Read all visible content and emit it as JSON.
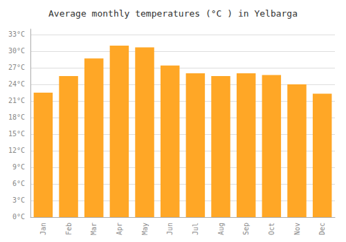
{
  "chart_data": {
    "type": "bar",
    "title": "Average monthly temperatures (°C ) in Yelbarga",
    "categories": [
      "Jan",
      "Feb",
      "Mar",
      "Apr",
      "May",
      "Jun",
      "Jul",
      "Aug",
      "Sep",
      "Oct",
      "Nov",
      "Dec"
    ],
    "values": [
      22.5,
      25.5,
      28.7,
      31.0,
      30.7,
      27.4,
      26.0,
      25.5,
      26.0,
      25.7,
      24.0,
      22.3
    ],
    "color": "#FFA726",
    "ylim": [
      0,
      34
    ],
    "yticks": [
      {
        "value": 0,
        "label": "0°C"
      },
      {
        "value": 3,
        "label": "3°C"
      },
      {
        "value": 6,
        "label": "6°C"
      },
      {
        "value": 9,
        "label": "9°C"
      },
      {
        "value": 12,
        "label": "12°C"
      },
      {
        "value": 15,
        "label": "15°C"
      },
      {
        "value": 18,
        "label": "18°C"
      },
      {
        "value": 21,
        "label": "21°C"
      },
      {
        "value": 24,
        "label": "24°C"
      },
      {
        "value": 27,
        "label": "27°C"
      },
      {
        "value": 30,
        "label": "30°C"
      },
      {
        "value": 33,
        "label": "33°C"
      }
    ],
    "grid": true
  }
}
